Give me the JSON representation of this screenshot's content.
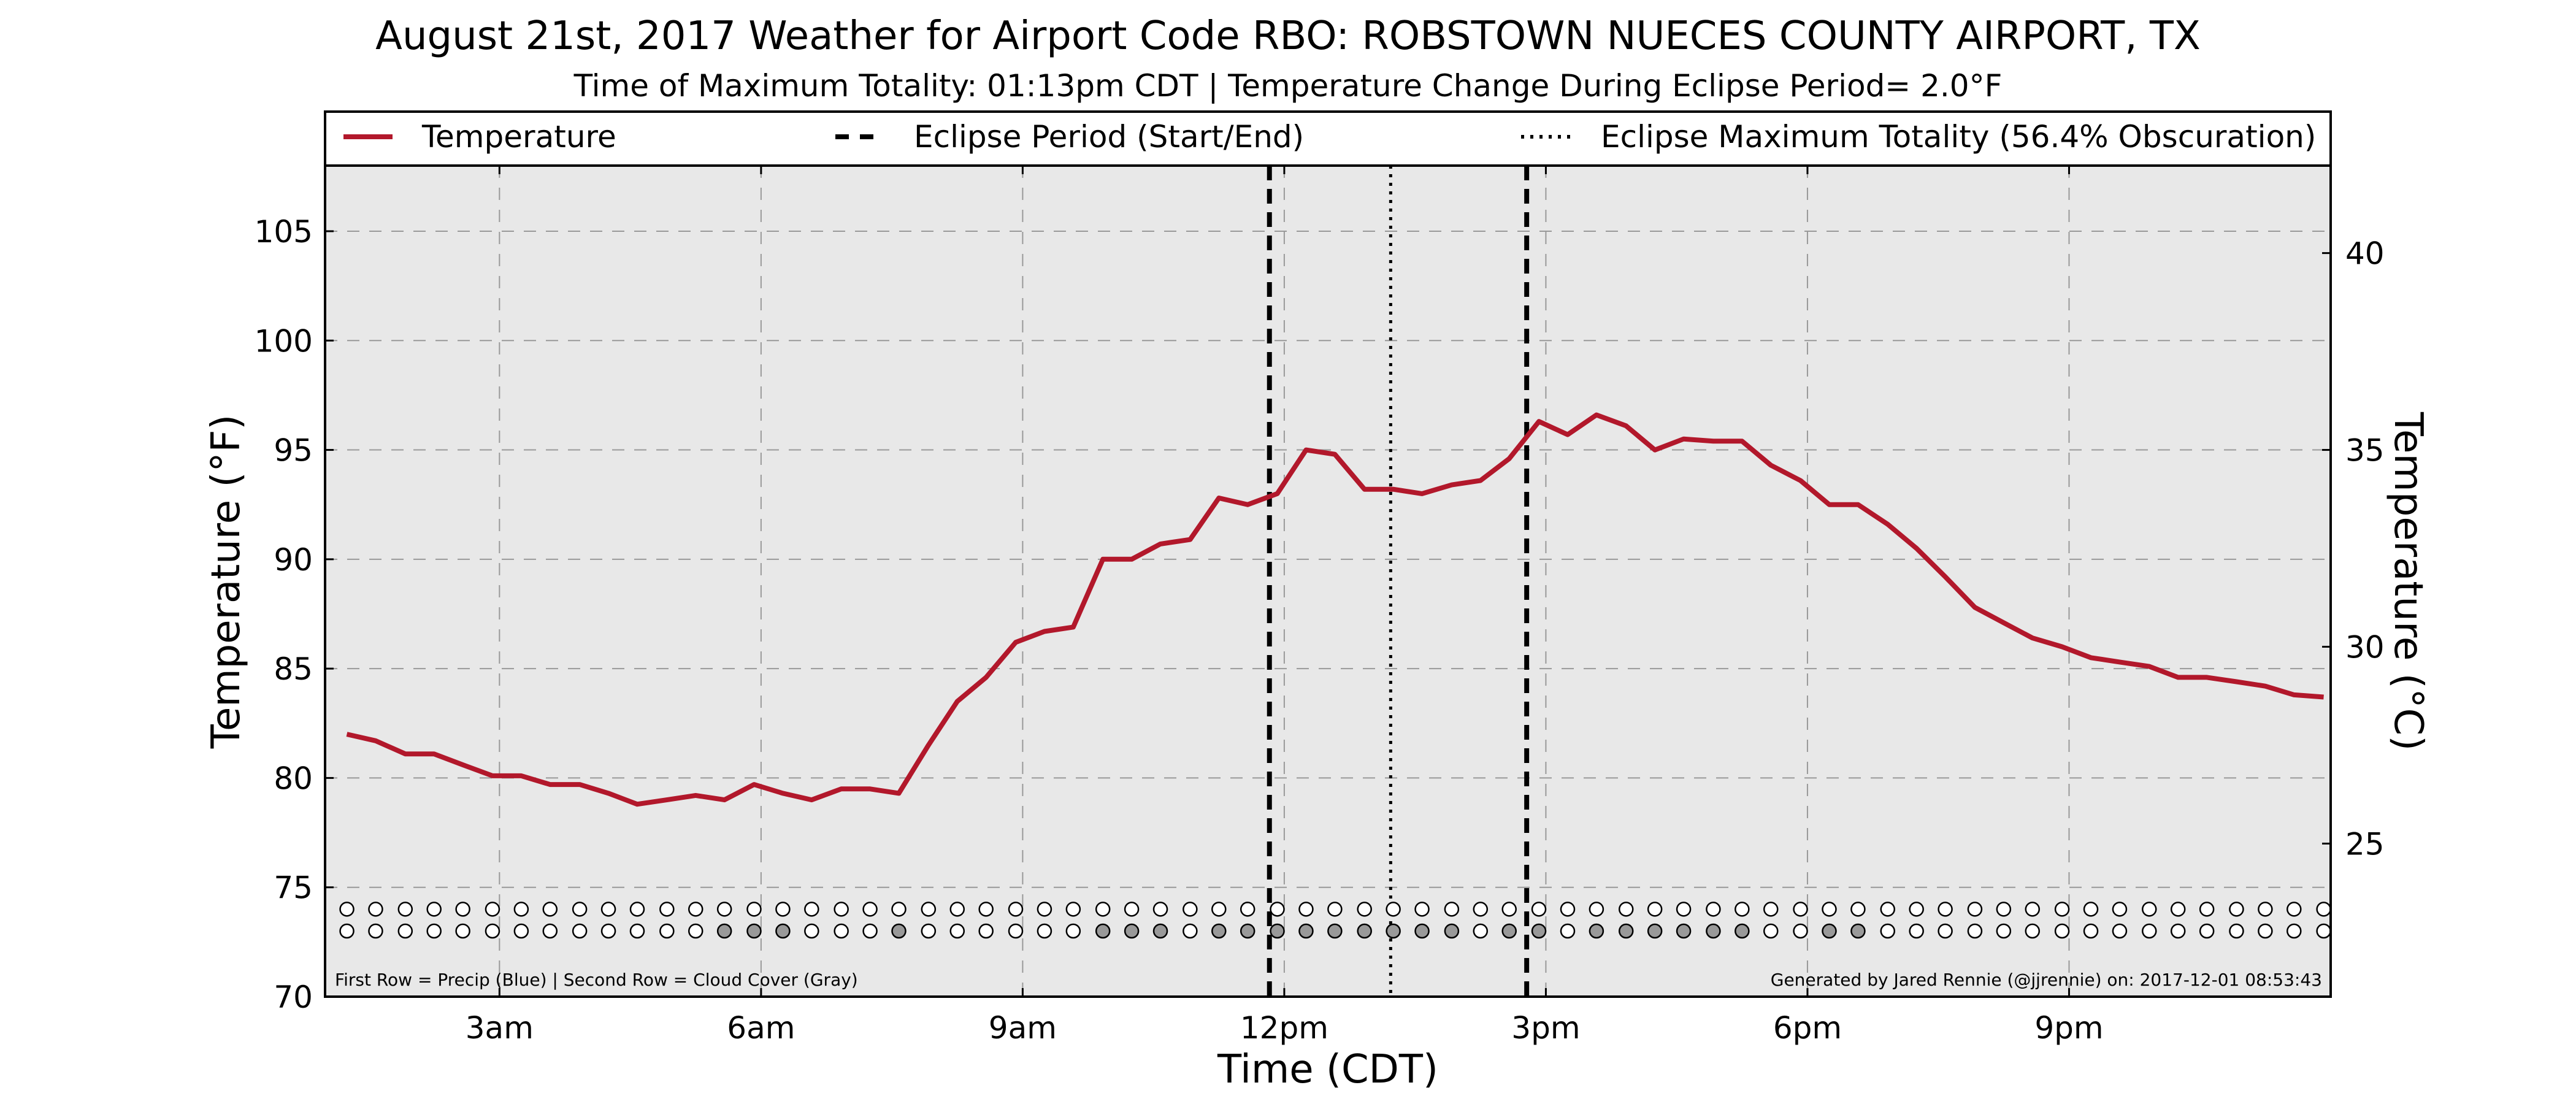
{
  "chart_data": {
    "type": "line",
    "title": "August 21st, 2017 Weather for Airport Code RBO: ROBSTOWN NUECES COUNTY AIRPORT, TX",
    "subtitle": "Time of Maximum Totality: 01:13pm CDT | Temperature Change During Eclipse Period= 2.0°F",
    "xlabel": "Time (CDT)",
    "ylabel": "Temperature (°F)",
    "ylabel_right": "Temperature (°C)",
    "xlim": [
      1.0,
      24.0
    ],
    "ylim": [
      70,
      108
    ],
    "y2lim": [
      21.1111,
      42.2222
    ],
    "grid": true,
    "x_ticks": [
      {
        "x": 3,
        "label": "3am"
      },
      {
        "x": 6,
        "label": "6am"
      },
      {
        "x": 9,
        "label": "9am"
      },
      {
        "x": 12,
        "label": "12pm"
      },
      {
        "x": 15,
        "label": "3pm"
      },
      {
        "x": 18,
        "label": "6pm"
      },
      {
        "x": 21,
        "label": "9pm"
      }
    ],
    "y_ticks": [
      70,
      75,
      80,
      85,
      90,
      95,
      100,
      105
    ],
    "y2_ticks": [
      25,
      30,
      35,
      40
    ],
    "legend": {
      "placement": "top",
      "entries": [
        {
          "label": "Temperature",
          "style": "solid",
          "color": "#b2182b"
        },
        {
          "label": "Eclipse Period (Start/End)",
          "style": "dashed",
          "color": "#000000"
        },
        {
          "label": "Eclipse Maximum Totality (56.4% Obscuration)",
          "style": "dotted",
          "color": "#000000"
        }
      ]
    },
    "series": [
      {
        "name": "Temperature",
        "color": "#b2182b",
        "x": [
          1.25,
          1.58,
          1.92,
          2.25,
          2.58,
          2.92,
          3.25,
          3.58,
          3.92,
          4.25,
          4.58,
          4.92,
          5.25,
          5.58,
          5.92,
          6.25,
          6.58,
          6.92,
          7.25,
          7.58,
          7.92,
          8.25,
          8.58,
          8.92,
          9.25,
          9.58,
          9.92,
          10.25,
          10.58,
          10.92,
          11.25,
          11.58,
          11.92,
          12.25,
          12.58,
          12.92,
          13.25,
          13.58,
          13.92,
          14.25,
          14.58,
          14.92,
          15.25,
          15.58,
          15.92,
          16.25,
          16.58,
          16.92,
          17.25,
          17.58,
          17.92,
          18.25,
          18.58,
          18.92,
          19.25,
          19.58,
          19.92,
          20.25,
          20.58,
          20.92,
          21.25,
          21.58,
          21.92,
          22.25,
          22.58,
          22.92,
          23.25,
          23.58,
          23.92
        ],
        "values": [
          82.0,
          81.7,
          81.1,
          81.1,
          80.6,
          80.1,
          80.1,
          79.7,
          79.7,
          79.3,
          78.8,
          79.0,
          79.2,
          79.0,
          79.7,
          79.3,
          79.0,
          79.5,
          79.5,
          79.3,
          81.5,
          83.5,
          84.6,
          86.2,
          86.7,
          86.9,
          90.0,
          90.0,
          90.7,
          90.9,
          92.8,
          92.5,
          93.0,
          95.0,
          94.8,
          93.2,
          93.2,
          93.0,
          93.4,
          93.6,
          94.6,
          96.3,
          95.7,
          96.6,
          96.1,
          95.0,
          95.5,
          95.4,
          95.4,
          94.3,
          93.6,
          92.5,
          92.5,
          91.6,
          90.5,
          89.2,
          87.8,
          87.1,
          86.4,
          86.0,
          85.5,
          85.3,
          85.1,
          84.6,
          84.6,
          84.4,
          84.2,
          83.8,
          83.7
        ]
      }
    ],
    "vlines": [
      {
        "x": 11.83,
        "style": "dashed",
        "label": "Eclipse Period (Start/End)"
      },
      {
        "x": 13.22,
        "style": "dotted",
        "label": "Eclipse Maximum Totality (56.4% Obscuration)"
      },
      {
        "x": 14.78,
        "style": "dashed",
        "label": "Eclipse Period (Start/End)"
      }
    ],
    "indicator_rows": {
      "x": [
        1.25,
        1.58,
        1.92,
        2.25,
        2.58,
        2.92,
        3.25,
        3.58,
        3.92,
        4.25,
        4.58,
        4.92,
        5.25,
        5.58,
        5.92,
        6.25,
        6.58,
        6.92,
        7.25,
        7.58,
        7.92,
        8.25,
        8.58,
        8.92,
        9.25,
        9.58,
        9.92,
        10.25,
        10.58,
        10.92,
        11.25,
        11.58,
        11.92,
        12.25,
        12.58,
        12.92,
        13.25,
        13.58,
        13.92,
        14.25,
        14.58,
        14.92,
        15.25,
        15.58,
        15.92,
        16.25,
        16.58,
        16.92,
        17.25,
        17.58,
        17.92,
        18.25,
        18.58,
        18.92,
        19.25,
        19.58,
        19.92,
        20.25,
        20.58,
        20.92,
        21.25,
        21.58,
        21.92,
        22.25,
        22.58,
        22.92,
        23.25,
        23.58,
        23.92
      ],
      "precip_y": 74.0,
      "cloud_y": 73.0,
      "precip": [
        0,
        0,
        0,
        0,
        0,
        0,
        0,
        0,
        0,
        0,
        0,
        0,
        0,
        0,
        0,
        0,
        0,
        0,
        0,
        0,
        0,
        0,
        0,
        0,
        0,
        0,
        0,
        0,
        0,
        0,
        0,
        0,
        0,
        0,
        0,
        0,
        0,
        0,
        0,
        0,
        0,
        0,
        0,
        0,
        0,
        0,
        0,
        0,
        0,
        0,
        0,
        0,
        0,
        0,
        0,
        0,
        0,
        0,
        0,
        0,
        0,
        0,
        0,
        0,
        0,
        0,
        0,
        0,
        0
      ],
      "cloud": [
        0,
        0,
        0,
        0,
        0,
        0,
        0,
        0,
        0,
        0,
        0,
        0,
        0,
        1,
        1,
        1,
        0,
        0,
        0,
        1,
        0,
        0,
        0,
        0,
        0,
        0,
        1,
        1,
        1,
        0,
        1,
        1,
        1,
        1,
        1,
        1,
        1,
        1,
        1,
        0,
        1,
        1,
        0,
        1,
        1,
        1,
        1,
        1,
        1,
        0,
        0,
        1,
        1,
        0,
        0,
        0,
        0,
        0,
        0,
        0,
        0,
        0,
        0,
        0,
        0,
        0,
        0,
        0,
        0
      ]
    },
    "footnote_left": "First Row = Precip (Blue) | Second Row = Cloud Cover (Gray)",
    "footnote_right": "Generated by Jared Rennie (@jjrennie) on: 2017-12-01 08:53:43",
    "colors": {
      "plot_bg": "#e8e8e8",
      "temperature": "#b2182b",
      "cloud_fill": "#999999",
      "precip_fill": "#2166ac",
      "empty_fill": "#ffffff"
    }
  }
}
